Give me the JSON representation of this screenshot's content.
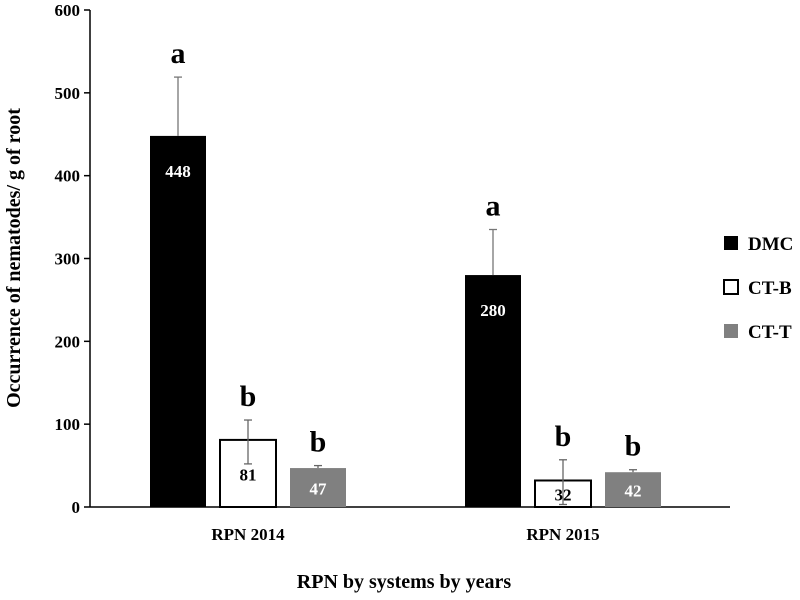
{
  "chart_data": {
    "type": "bar",
    "title": "",
    "xlabel": "RPN by systems by years",
    "ylabel": "Occurrence of nematodes/ g of root",
    "ylim": [
      0,
      600
    ],
    "yticks": [
      0,
      100,
      200,
      300,
      400,
      500,
      600
    ],
    "categories": [
      "RPN 2014",
      "RPN 2015"
    ],
    "legend_position": "right",
    "grid": false,
    "series": [
      {
        "name": "DMC",
        "color": "#000000",
        "fill": "solid-black",
        "values": [
          448,
          280
        ],
        "errors": [
          71,
          55
        ],
        "value_labels": [
          "448",
          "280"
        ],
        "letters": [
          "a",
          "a"
        ]
      },
      {
        "name": "CT-B",
        "color": "#ffffff",
        "fill": "white-outlined",
        "values": [
          81,
          32
        ],
        "errors": [
          24,
          25
        ],
        "value_labels": [
          "81",
          "32"
        ],
        "letters": [
          "b",
          "b"
        ]
      },
      {
        "name": "CT-T",
        "color": "#808080",
        "fill": "solid-gray",
        "values": [
          47,
          42
        ],
        "errors": [
          3,
          3
        ],
        "value_labels": [
          "47",
          "42"
        ],
        "letters": [
          "b",
          "b"
        ]
      }
    ]
  }
}
